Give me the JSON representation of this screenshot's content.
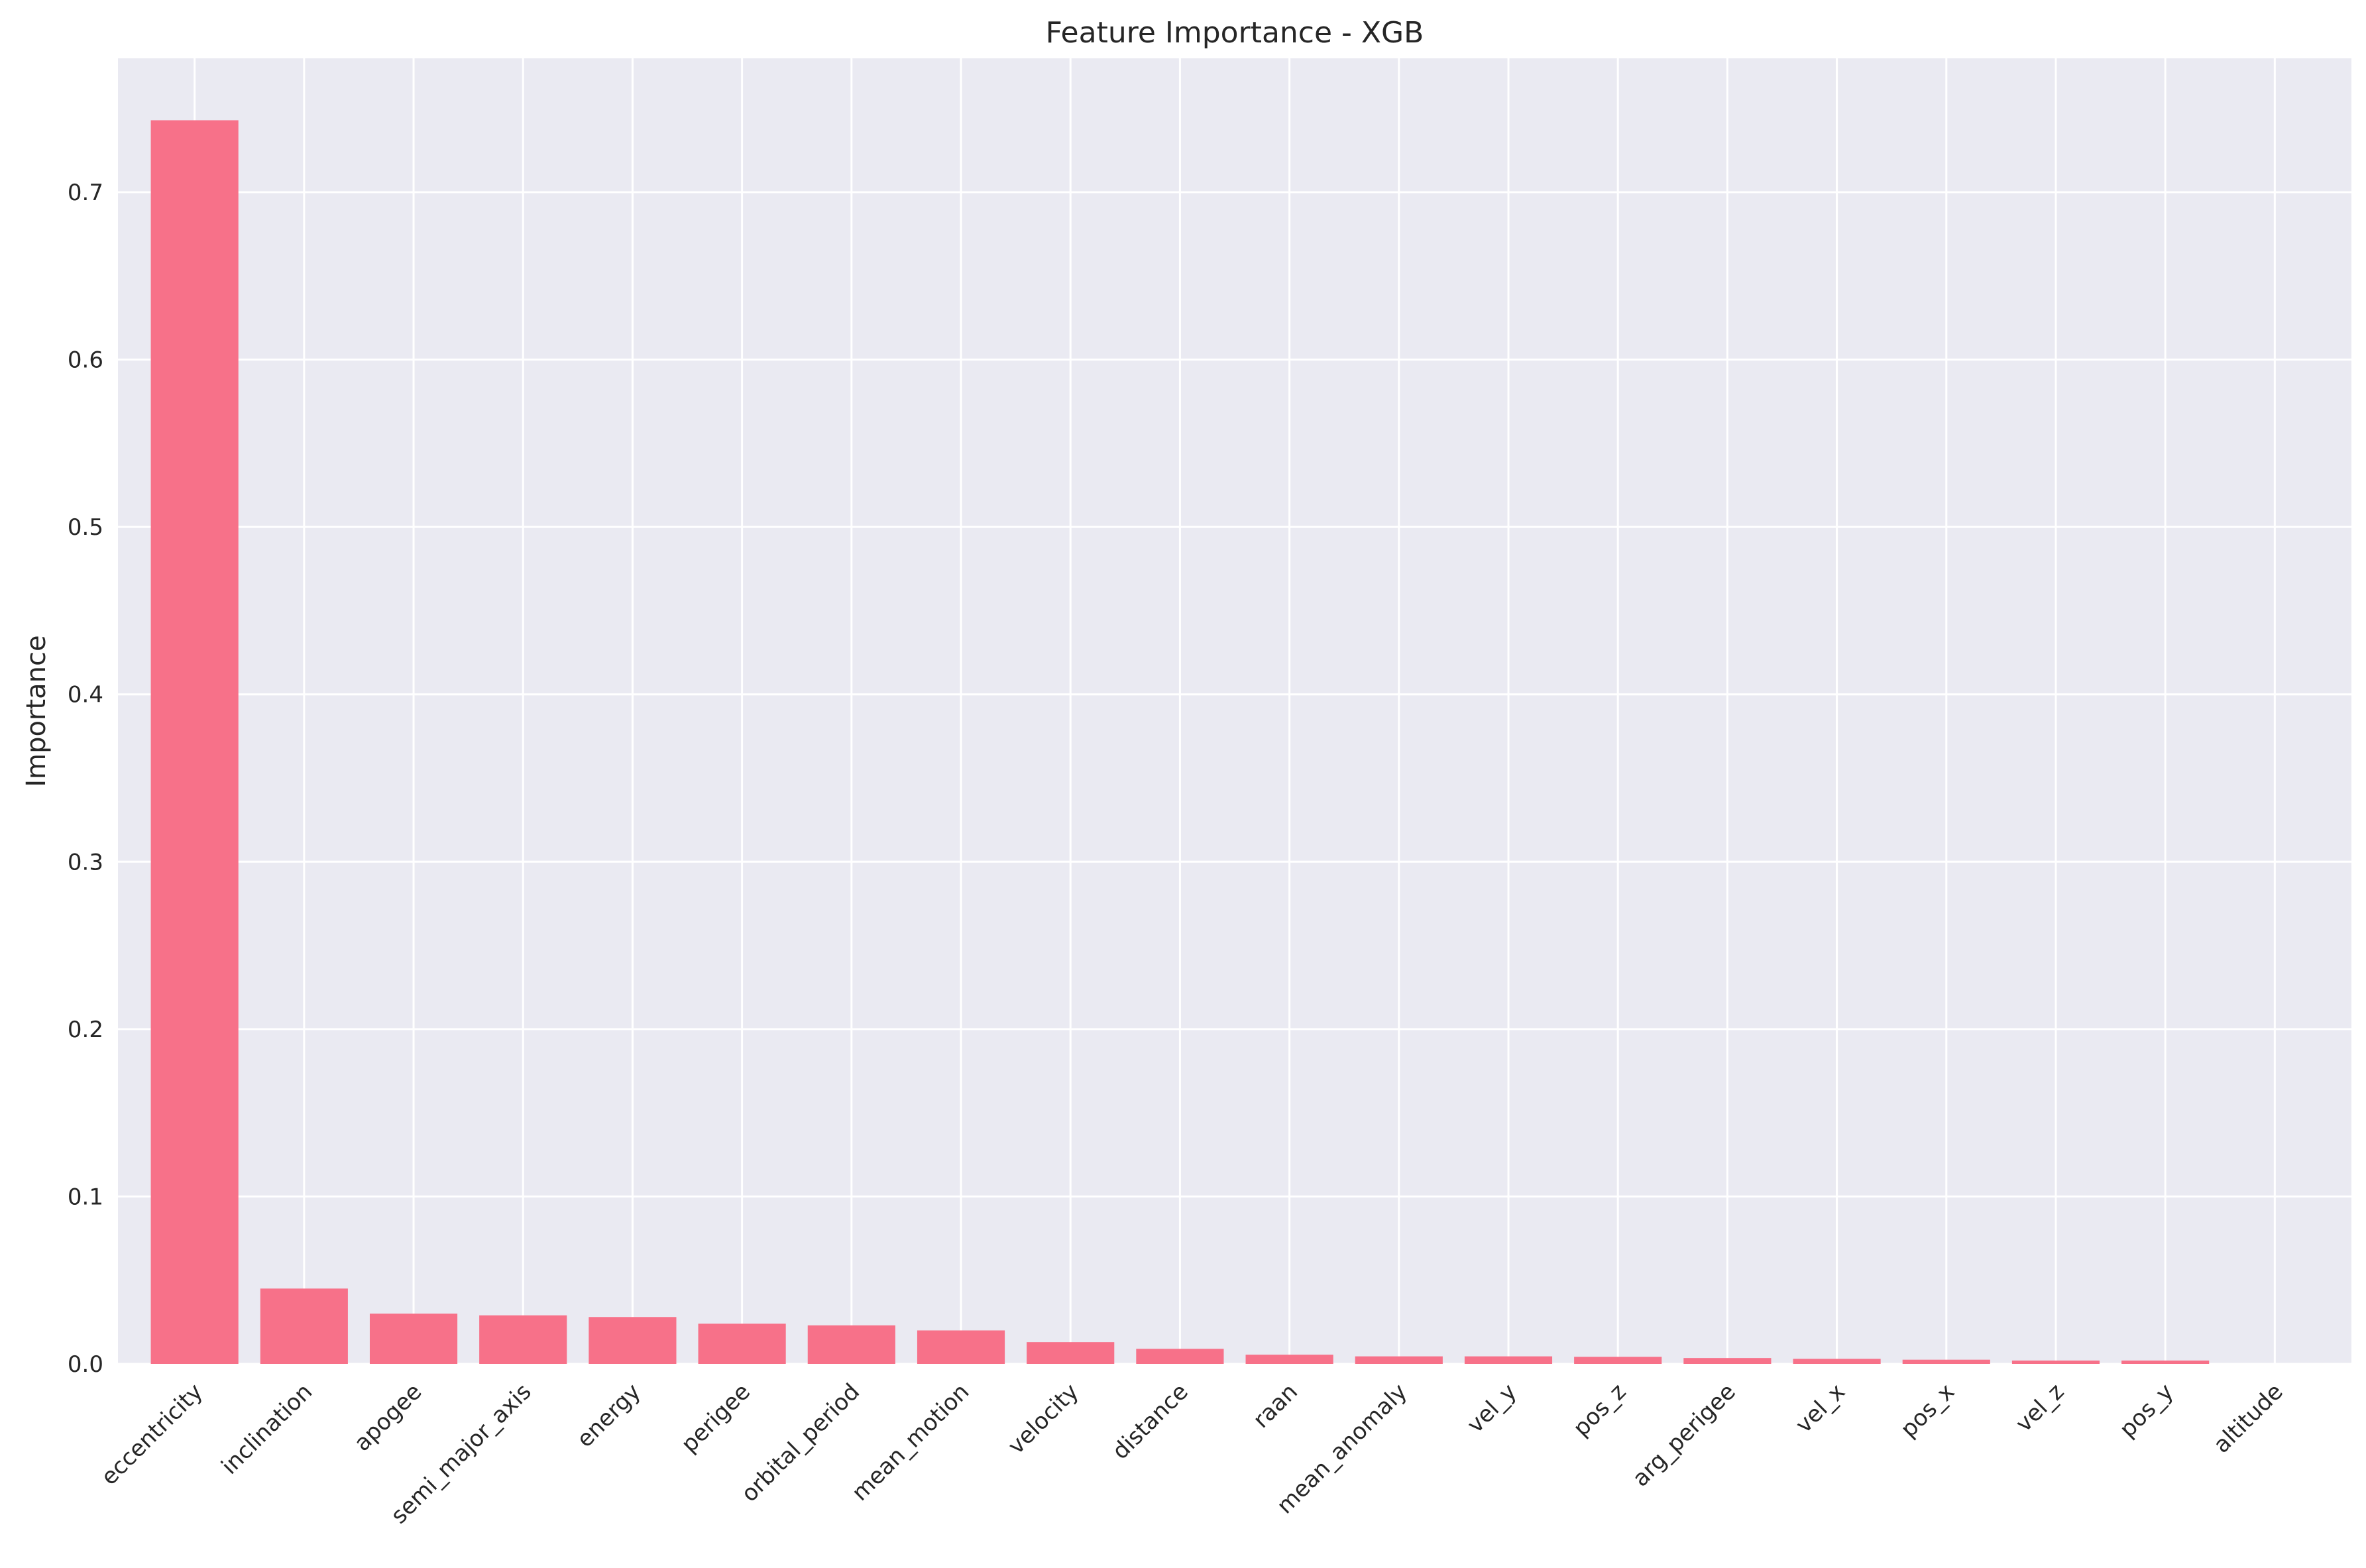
{
  "chart_data": {
    "type": "bar",
    "title": "Feature Importance - XGB",
    "xlabel": "",
    "ylabel": "Importance",
    "categories": [
      "eccentricity",
      "inclination",
      "apogee",
      "semi_major_axis",
      "energy",
      "perigee",
      "orbital_period",
      "mean_motion",
      "velocity",
      "distance",
      "raan",
      "mean_anomaly",
      "vel_y",
      "pos_z",
      "arg_perigee",
      "vel_x",
      "pos_x",
      "vel_z",
      "pos_y",
      "altitude"
    ],
    "values": [
      0.743,
      0.045,
      0.03,
      0.029,
      0.028,
      0.024,
      0.023,
      0.02,
      0.013,
      0.009,
      0.0055,
      0.0045,
      0.0045,
      0.0042,
      0.0035,
      0.003,
      0.0025,
      0.002,
      0.002,
      0.0
    ],
    "yticks": [
      "0.0",
      "0.1",
      "0.2",
      "0.3",
      "0.4",
      "0.5",
      "0.6",
      "0.7"
    ],
    "ylim": [
      0,
      0.78
    ],
    "grid": true,
    "colors": {
      "bar": "#f77189",
      "plot_bg": "#eaeaf2",
      "grid": "#ffffff"
    }
  }
}
